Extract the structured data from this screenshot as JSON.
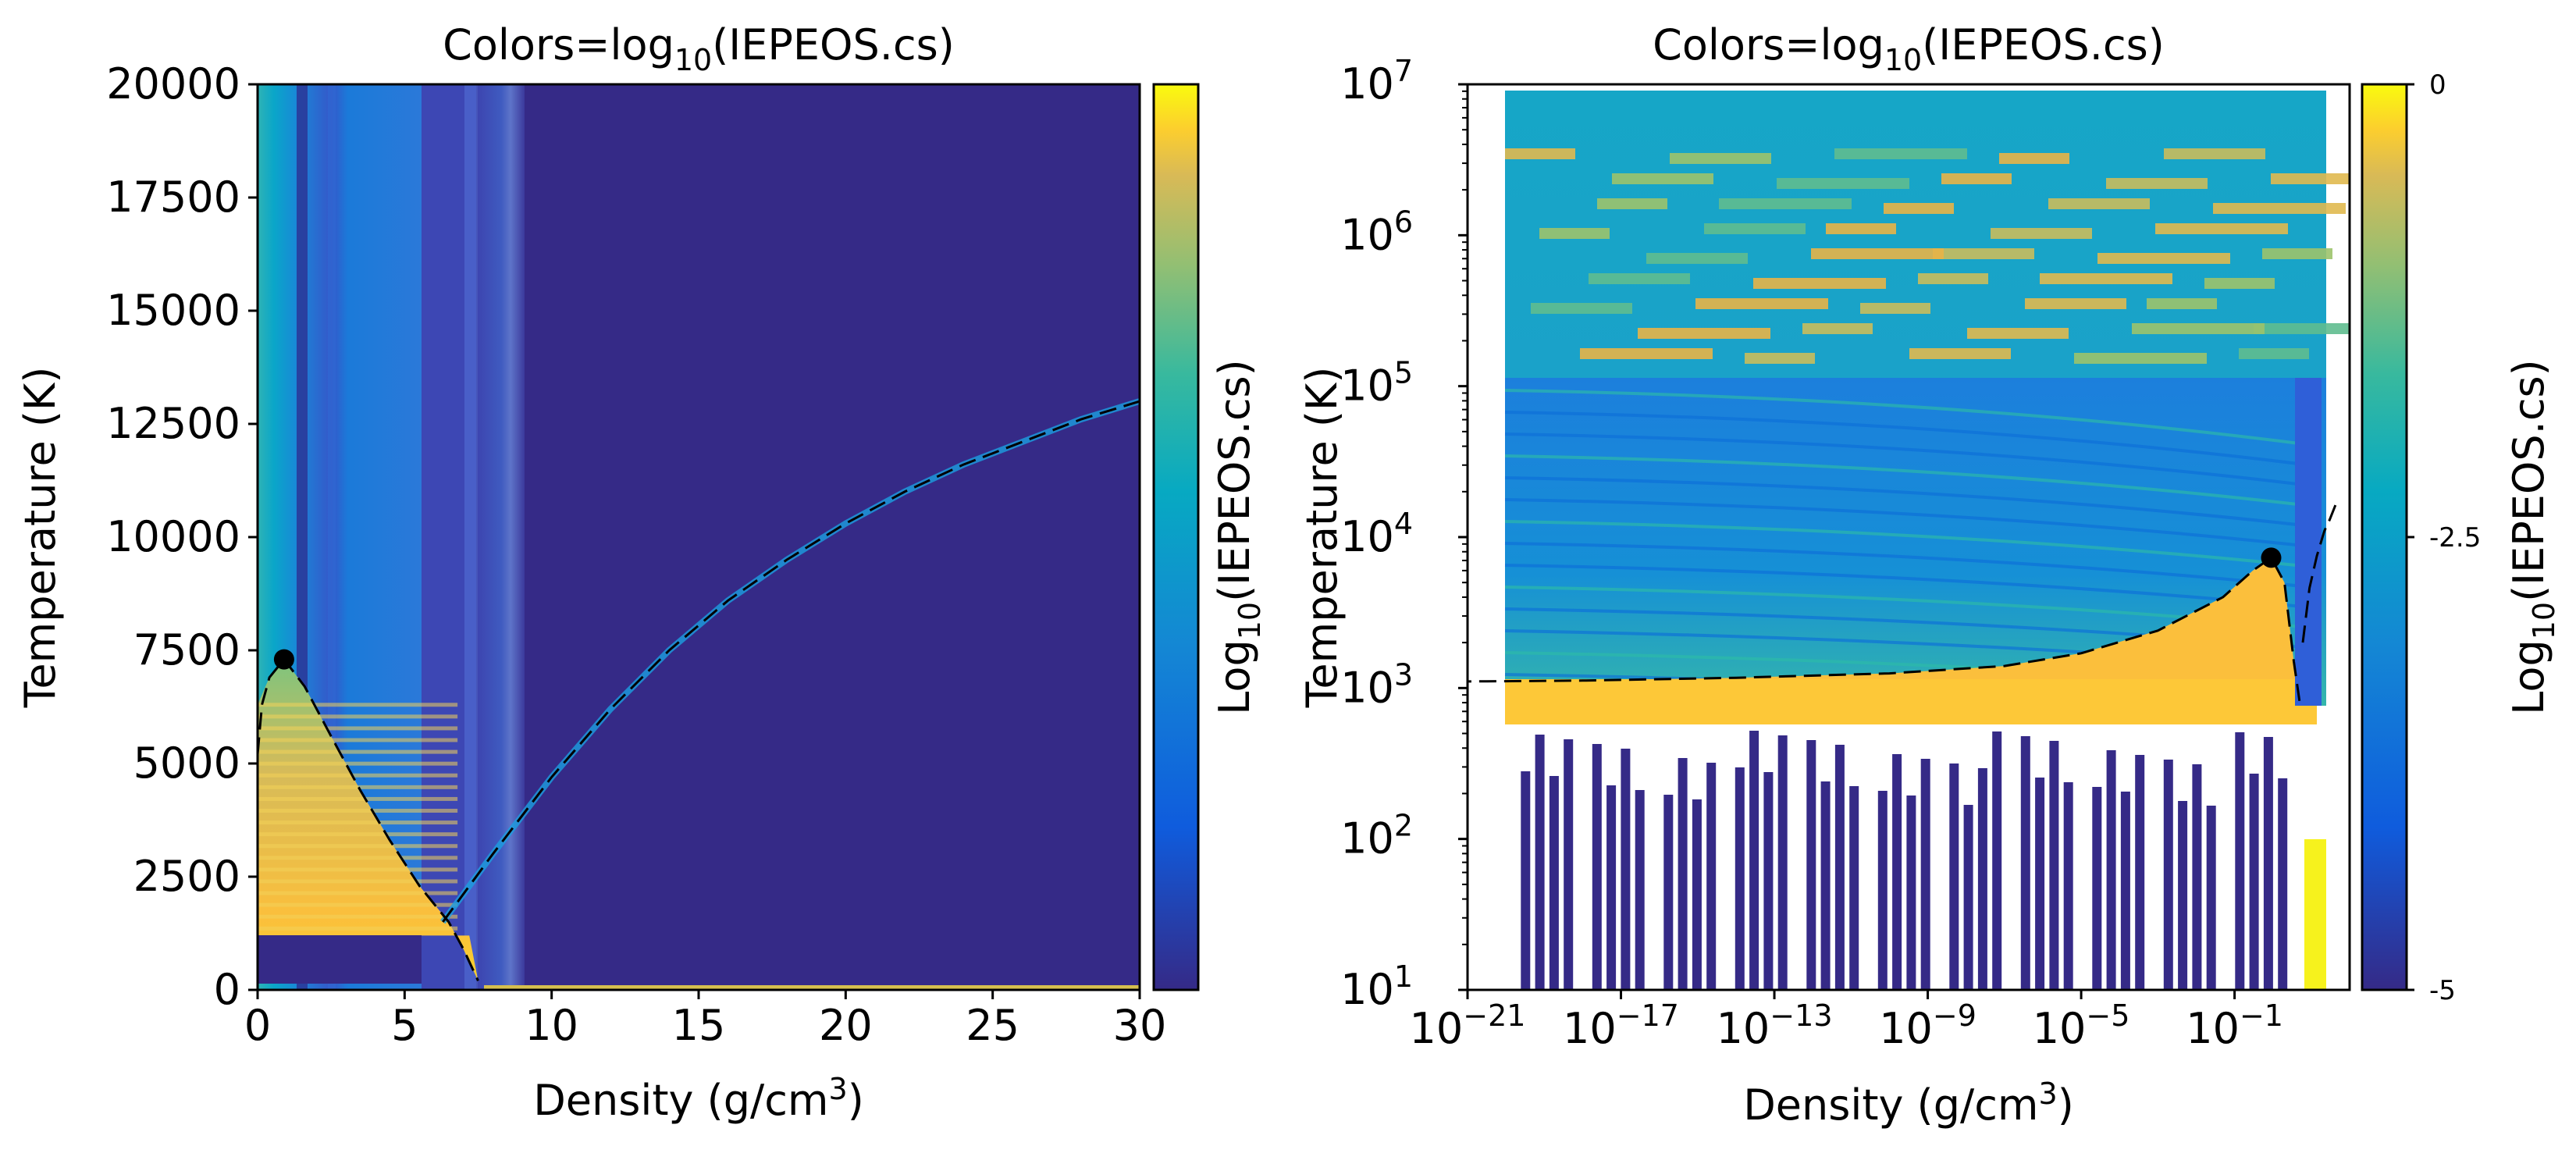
{
  "chart_data": [
    {
      "type": "heatmap",
      "title": "Colors=log",
      "title_sub": "10",
      "title_tail": "(IEPEOS.cs)",
      "xlabel": "Density (g/cm",
      "xlabel_sup": "3",
      "xlabel_tail": ")",
      "ylabel": "Temperature (K)",
      "x_scale": "linear",
      "y_scale": "linear",
      "xlim": [
        0,
        30
      ],
      "ylim": [
        0,
        20000
      ],
      "x_ticks": [
        0,
        5,
        10,
        15,
        20,
        25,
        30
      ],
      "x_tick_labels": [
        "0",
        "5",
        "10",
        "15",
        "20",
        "25",
        "30"
      ],
      "y_ticks": [
        0,
        2500,
        5000,
        7500,
        10000,
        12500,
        15000,
        17500,
        20000
      ],
      "y_tick_labels": [
        "0",
        "2500",
        "5000",
        "7500",
        "10000",
        "12500",
        "15000",
        "17500",
        "20000"
      ],
      "colorbar": {
        "label": "Log",
        "label_sub": "10",
        "label_tail": "(IEPEOS.cs)",
        "range": [
          -5,
          0
        ],
        "tick_labels": []
      },
      "critical_point": {
        "x": 0.9,
        "y": 7300
      },
      "coexistence_curve": [
        [
          0.0,
          5200
        ],
        [
          0.15,
          6300
        ],
        [
          0.4,
          6900
        ],
        [
          0.9,
          7300
        ],
        [
          1.6,
          6700
        ],
        [
          2.5,
          5600
        ],
        [
          3.5,
          4400
        ],
        [
          4.5,
          3300
        ],
        [
          5.5,
          2300
        ],
        [
          6.5,
          1500
        ],
        [
          7.0,
          900
        ],
        [
          7.5,
          200
        ]
      ],
      "melting_curve": [
        [
          6.3,
          1500
        ],
        [
          8,
          3000
        ],
        [
          10,
          4700
        ],
        [
          12,
          6200
        ],
        [
          14,
          7500
        ],
        [
          16,
          8600
        ],
        [
          18,
          9500
        ],
        [
          20,
          10300
        ],
        [
          22,
          11000
        ],
        [
          24,
          11600
        ],
        [
          26,
          12100
        ],
        [
          28,
          12600
        ],
        [
          30,
          13000
        ]
      ],
      "grid": false,
      "legend": "none"
    },
    {
      "type": "heatmap",
      "title": "Colors=log",
      "title_sub": "10",
      "title_tail": "(IEPEOS.cs)",
      "xlabel": "Density (g/cm",
      "xlabel_sup": "3",
      "xlabel_tail": ")",
      "ylabel": "Temperature (K)",
      "x_scale": "log",
      "y_scale": "log",
      "xlim": [
        1e-21,
        100
      ],
      "ylim": [
        10,
        10000000
      ],
      "x_ticks_exp": [
        -21,
        -17,
        -13,
        -9,
        -5,
        -1
      ],
      "x_tick_base": "10",
      "y_ticks_exp": [
        1,
        2,
        3,
        4,
        5,
        6,
        7
      ],
      "y_tick_base": "10",
      "colorbar": {
        "label": "Log",
        "label_sub": "10",
        "label_tail": "(IEPEOS.cs)",
        "range": [
          -5,
          0
        ],
        "ticks": [
          0,
          -2.5,
          -5
        ],
        "tick_labels": [
          "0",
          "-2.5",
          "-5"
        ]
      },
      "critical_point": {
        "x": 0.9,
        "y": 7300
      },
      "coexistence_curve": [
        [
          1e-22,
          1100
        ],
        [
          1e-18,
          1120
        ],
        [
          1e-14,
          1170
        ],
        [
          1e-10,
          1250
        ],
        [
          1e-07,
          1400
        ],
        [
          1e-05,
          1700
        ],
        [
          0.001,
          2400
        ],
        [
          0.05,
          4000
        ],
        [
          0.3,
          6000
        ],
        [
          0.9,
          7300
        ],
        [
          2.0,
          5000
        ],
        [
          3.5,
          1500
        ],
        [
          5,
          800
        ]
      ],
      "melting_curve": [
        [
          6,
          2000
        ],
        [
          9,
          4600
        ],
        [
          14,
          7500
        ],
        [
          22,
          11000
        ],
        [
          30,
          13000
        ],
        [
          50,
          18000
        ]
      ],
      "grid": false,
      "legend": "none"
    }
  ]
}
